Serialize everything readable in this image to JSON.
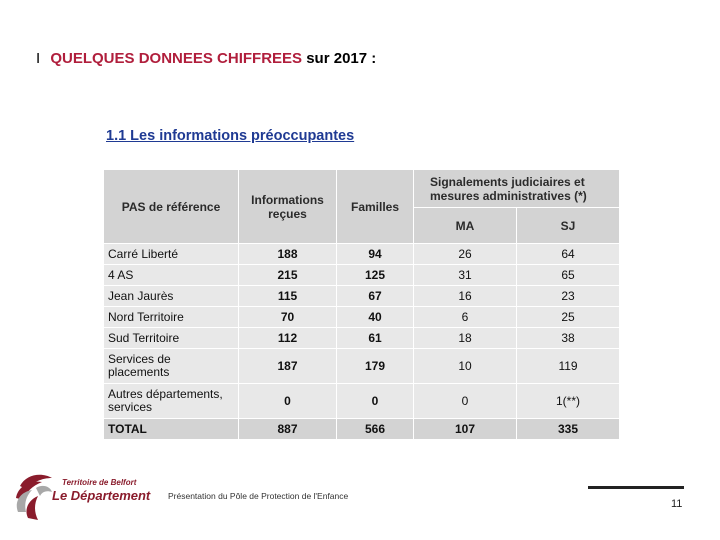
{
  "header": {
    "bar": "I",
    "title_red": "QUELQUES DONNEES CHIFFREES",
    "title_rest": "sur 2017 :"
  },
  "section": {
    "title": "1.1 Les informations préoccupantes"
  },
  "table": {
    "headers": {
      "pas": "PAS de référence",
      "informations": "Informations reçues",
      "familles": "Familles",
      "signalements": "Signalements judiciaires et mesures administratives (*)",
      "ma": "MA",
      "sj": "SJ"
    },
    "rows": [
      {
        "pas": "Carré Liberté",
        "informations": "188",
        "familles": "94",
        "ma": "26",
        "sj": "64"
      },
      {
        "pas": "4 AS",
        "informations": "215",
        "familles": "125",
        "ma": "31",
        "sj": "65"
      },
      {
        "pas": "Jean Jaurès",
        "informations": "115",
        "familles": "67",
        "ma": "16",
        "sj": "23"
      },
      {
        "pas": "Nord Territoire",
        "informations": "70",
        "familles": "40",
        "ma": "6",
        "sj": "25"
      },
      {
        "pas": "Sud Territoire",
        "informations": "112",
        "familles": "61",
        "ma": "18",
        "sj": "38"
      },
      {
        "pas": "Services de placements",
        "informations": "187",
        "familles": "179",
        "ma": "10",
        "sj": "119"
      },
      {
        "pas": "Autres départements, services",
        "informations": "0",
        "familles": "0",
        "ma": "0",
        "sj": "1(**)"
      }
    ],
    "total": {
      "pas": "TOTAL",
      "informations": "887",
      "familles": "566",
      "ma": "107",
      "sj": "335"
    }
  },
  "footer": {
    "presentation": "Présentation du Pôle de Protection de l'Enfance",
    "page_number": "11",
    "logo_line1": "Territoire de Belfort",
    "logo_line2": "Le Département"
  },
  "colors": {
    "title_red": "#b01e3c",
    "subtitle_blue": "#1f3a93",
    "logo_red": "#8a1c2c"
  }
}
